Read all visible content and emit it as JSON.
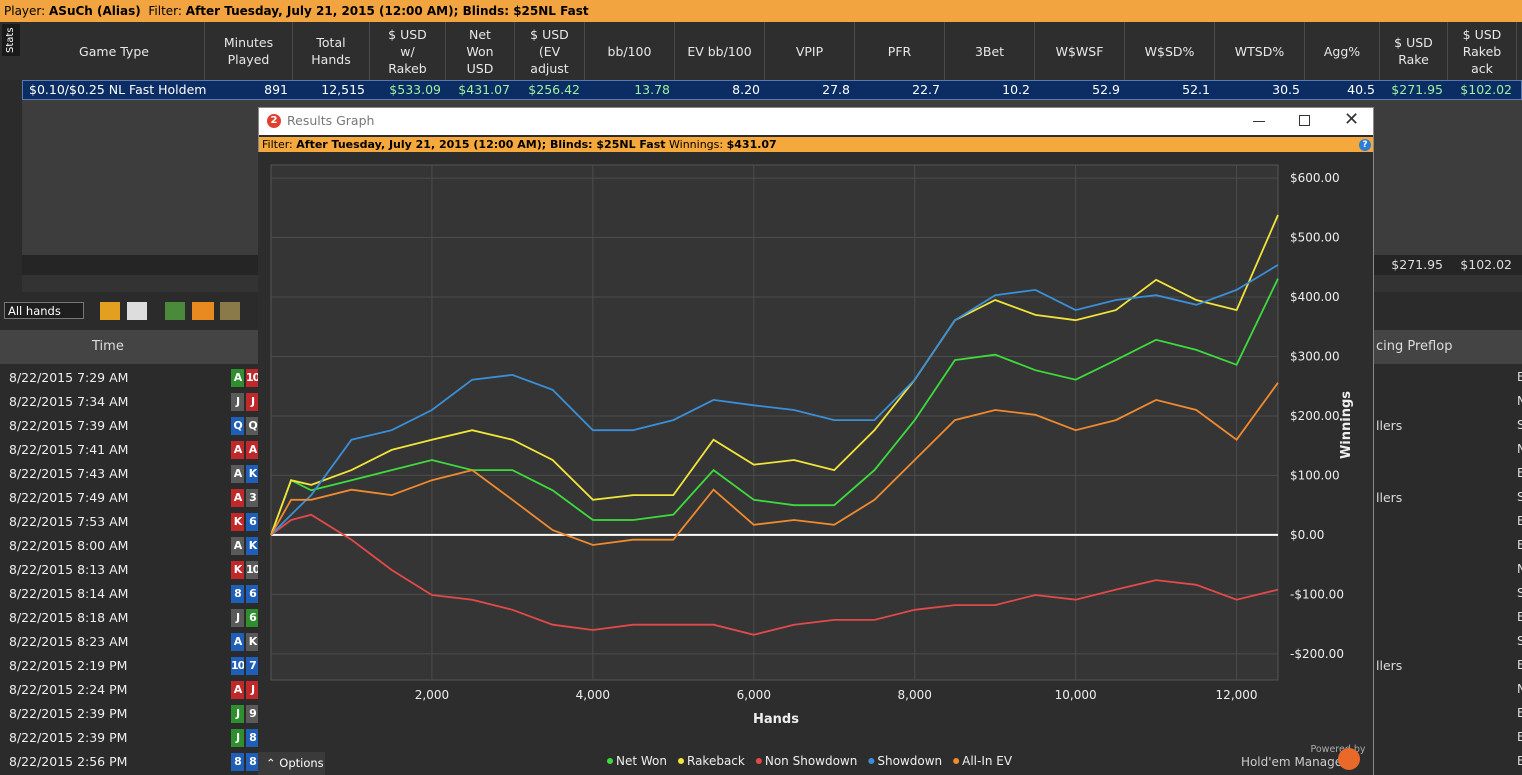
{
  "header": {
    "player_label": "Player:",
    "player": "ASuCh (Alias)",
    "filter_label": "Filter:",
    "filter": "After Tuesday, July 21, 2015 (12:00 AM); Blinds: $25NL Fast"
  },
  "side_tab": "Stats",
  "stats_table": {
    "columns": [
      "Game Type",
      "Minutes\nPlayed",
      "Total\nHands",
      "$ USD\nw/\nRakeb",
      "Net\nWon\nUSD",
      "$ USD\n(EV\nadjust",
      "bb/100",
      "EV bb/100",
      "VPIP",
      "PFR",
      "3Bet",
      "W$WSF",
      "W$SD%",
      "WTSD%",
      "Agg%",
      "$ USD\nRake",
      "$ USD\nRakeb\nack"
    ],
    "rows": [
      [
        "$0.10/$0.25 NL Fast Holdem",
        "891",
        "12,515",
        "$533.09",
        "$431.07",
        "$256.42",
        "13.78",
        "8.20",
        "27.8",
        "22.7",
        "10.2",
        "52.9",
        "52.1",
        "30.5",
        "40.5",
        "$271.95",
        "$102.02"
      ]
    ],
    "totals": [
      "$271.95",
      "$102.02"
    ]
  },
  "hands_toolbar": {
    "filter": "All hands"
  },
  "hands_table": {
    "columns": [
      "Time",
      "cing Preflop"
    ],
    "rows": [
      {
        "time": "8/22/2015 7:29 AM",
        "cards": [
          {
            "rank": "A",
            "color": "#2f8f2f"
          },
          {
            "rank": "10",
            "color": "#c0282a"
          }
        ],
        "edge": "E"
      },
      {
        "time": "8/22/2015 7:34 AM",
        "cards": [
          {
            "rank": "J",
            "color": "#5a5a5a"
          },
          {
            "rank": "J",
            "color": "#c0282a"
          }
        ],
        "edge": "N"
      },
      {
        "time": "8/22/2015 7:39 AM",
        "cards": [
          {
            "rank": "Q",
            "color": "#1f5fb8"
          },
          {
            "rank": "Q",
            "color": "#5a5a5a"
          }
        ],
        "action": "llers",
        "edge": "S"
      },
      {
        "time": "8/22/2015 7:41 AM",
        "cards": [
          {
            "rank": "A",
            "color": "#c0282a"
          },
          {
            "rank": "A",
            "color": "#c0282a"
          }
        ],
        "edge": "N"
      },
      {
        "time": "8/22/2015 7:43 AM",
        "cards": [
          {
            "rank": "A",
            "color": "#5a5a5a"
          },
          {
            "rank": "K",
            "color": "#1f5fb8"
          }
        ],
        "edge": "E"
      },
      {
        "time": "8/22/2015 7:49 AM",
        "cards": [
          {
            "rank": "A",
            "color": "#c0282a"
          },
          {
            "rank": "3",
            "color": "#5a5a5a"
          }
        ],
        "action": "llers",
        "edge": "S"
      },
      {
        "time": "8/22/2015 7:53 AM",
        "cards": [
          {
            "rank": "K",
            "color": "#c0282a"
          },
          {
            "rank": "6",
            "color": "#1f5fb8"
          }
        ],
        "edge": "E"
      },
      {
        "time": "8/22/2015 8:00 AM",
        "cards": [
          {
            "rank": "A",
            "color": "#5a5a5a"
          },
          {
            "rank": "K",
            "color": "#1f5fb8"
          }
        ],
        "edge": "E"
      },
      {
        "time": "8/22/2015 8:13 AM",
        "cards": [
          {
            "rank": "K",
            "color": "#c0282a"
          },
          {
            "rank": "10",
            "color": "#5a5a5a"
          }
        ],
        "edge": "N"
      },
      {
        "time": "8/22/2015 8:14 AM",
        "cards": [
          {
            "rank": "8",
            "color": "#1f5fb8"
          },
          {
            "rank": "6",
            "color": "#1f5fb8"
          }
        ],
        "edge": "S"
      },
      {
        "time": "8/22/2015 8:18 AM",
        "cards": [
          {
            "rank": "J",
            "color": "#5a5a5a"
          },
          {
            "rank": "6",
            "color": "#2f8f2f"
          }
        ],
        "edge": "E"
      },
      {
        "time": "8/22/2015 8:23 AM",
        "cards": [
          {
            "rank": "A",
            "color": "#1f5fb8"
          },
          {
            "rank": "K",
            "color": "#5a5a5a"
          }
        ],
        "edge": "S"
      },
      {
        "time": "8/22/2015 2:19 PM",
        "cards": [
          {
            "rank": "10",
            "color": "#1f5fb8"
          },
          {
            "rank": "7",
            "color": "#1f5fb8"
          }
        ],
        "action": "llers",
        "edge": "E"
      },
      {
        "time": "8/22/2015 2:24 PM",
        "cards": [
          {
            "rank": "A",
            "color": "#c0282a"
          },
          {
            "rank": "J",
            "color": "#c0282a"
          }
        ],
        "edge": "N"
      },
      {
        "time": "8/22/2015 2:39 PM",
        "cards": [
          {
            "rank": "J",
            "color": "#2f8f2f"
          },
          {
            "rank": "9",
            "color": "#5a5a5a"
          }
        ],
        "edge": "E"
      },
      {
        "time": "8/22/2015 2:39 PM",
        "cards": [
          {
            "rank": "J",
            "color": "#2f8f2f"
          },
          {
            "rank": "8",
            "color": "#1f5fb8"
          }
        ],
        "edge": "E"
      },
      {
        "time": "8/22/2015 2:56 PM",
        "cards": [
          {
            "rank": "8",
            "color": "#1f5fb8"
          },
          {
            "rank": "8",
            "color": "#1f5fb8"
          }
        ],
        "edge": "E"
      }
    ]
  },
  "results_window": {
    "logo": "2",
    "title": "Results Graph",
    "filter_label": "Filter:",
    "filter": "After Tuesday, July 21, 2015 (12:00 AM); Blinds: $25NL Fast",
    "winnings_label": "Winnings:",
    "winnings": "$431.07",
    "help": "?",
    "options": "Options",
    "powered_by": "Powered by",
    "brand": "Hold'em Manager"
  },
  "chart_data": {
    "type": "line",
    "xlabel": "Hands",
    "ylabel": "Winnings",
    "x": [
      0,
      250,
      500,
      1000,
      1500,
      2000,
      2500,
      3000,
      3500,
      4000,
      4500,
      5000,
      5500,
      6000,
      6500,
      7000,
      7500,
      8000,
      8500,
      9000,
      9500,
      10000,
      10500,
      11000,
      11500,
      12000,
      12515
    ],
    "series": [
      {
        "name": "Net Won",
        "color": "#3ddc3d",
        "values": [
          0,
          92,
          75,
          92,
          109,
          126,
          109,
          109,
          75,
          25,
          25,
          34,
          109,
          59,
          50,
          50,
          109,
          193,
          294,
          303,
          277,
          261,
          294,
          328,
          311,
          286,
          431
        ]
      },
      {
        "name": "Rakeback",
        "color": "#f2e43a",
        "values": [
          0,
          92,
          84,
          109,
          143,
          160,
          176,
          160,
          126,
          59,
          67,
          67,
          160,
          118,
          126,
          109,
          176,
          261,
          361,
          395,
          370,
          361,
          378,
          429,
          395,
          378,
          538
        ]
      },
      {
        "name": "Non Showdown",
        "color": "#e24a4a",
        "values": [
          0,
          25,
          34,
          -8,
          -59,
          -101,
          -109,
          -126,
          -151,
          -160,
          -151,
          -151,
          -151,
          -168,
          -151,
          -143,
          -143,
          -126,
          -118,
          -118,
          -101,
          -109,
          -92,
          -76,
          -84,
          -109,
          -92
        ]
      },
      {
        "name": "Showdown",
        "color": "#3b8fd8",
        "values": [
          0,
          34,
          67,
          160,
          176,
          210,
          261,
          269,
          244,
          176,
          176,
          193,
          227,
          218,
          210,
          193,
          193,
          261,
          361,
          403,
          412,
          378,
          395,
          403,
          387,
          412,
          454
        ]
      },
      {
        "name": "All-In EV",
        "color": "#f08a2e",
        "values": [
          0,
          59,
          59,
          76,
          67,
          92,
          109,
          59,
          8,
          -17,
          -8,
          -8,
          76,
          17,
          25,
          17,
          59,
          126,
          193,
          210,
          202,
          176,
          193,
          227,
          210,
          160,
          256
        ]
      }
    ],
    "xlim": [
      0,
      12515
    ],
    "ylim": [
      -244,
      622
    ],
    "xticks": [
      {
        "value": 2000,
        "label": "2,000"
      },
      {
        "value": 4000,
        "label": "4,000"
      },
      {
        "value": 6000,
        "label": "6,000"
      },
      {
        "value": 8000,
        "label": "8,000"
      },
      {
        "value": 10000,
        "label": "10,000"
      },
      {
        "value": 12000,
        "label": "12,000"
      }
    ],
    "yticks": [
      {
        "value": -200,
        "label": "-$200.00"
      },
      {
        "value": -100,
        "label": "-$100.00"
      },
      {
        "value": 0,
        "label": "$0.00"
      },
      {
        "value": 100,
        "label": "$100.00"
      },
      {
        "value": 200,
        "label": "$200.00"
      },
      {
        "value": 300,
        "label": "$300.00"
      },
      {
        "value": 400,
        "label": "$400.00"
      },
      {
        "value": 500,
        "label": "$500.00"
      },
      {
        "value": 600,
        "label": "$600.00"
      }
    ],
    "grid": true,
    "legend": "bottom"
  }
}
